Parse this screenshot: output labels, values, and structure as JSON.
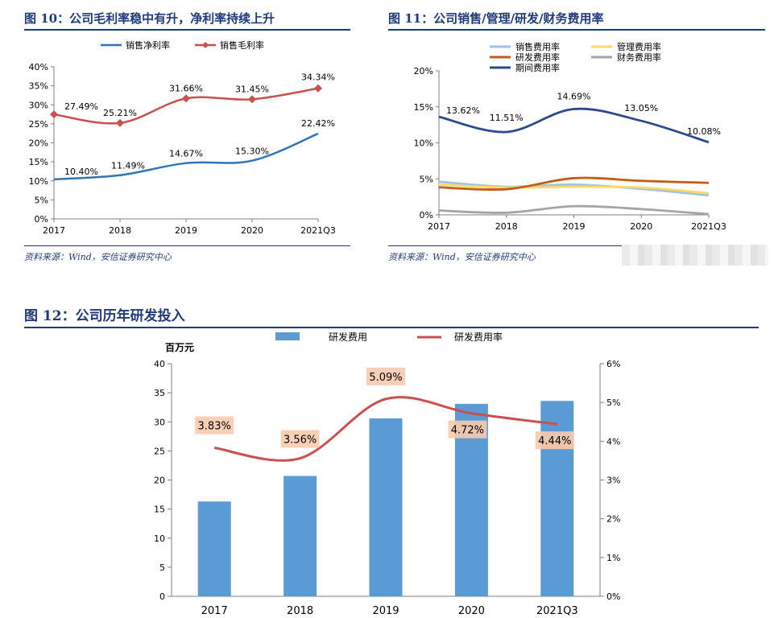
{
  "figures": {
    "fig10": {
      "title": "图 10：公司毛利率稳中有升，净利率持续上升",
      "source": "资料来源：Wind，安信证券研究中心"
    },
    "fig11": {
      "title": "图 11：公司销售/管理/研发/财务费用率",
      "source": "资料来源：Wind，安信证券研究中心"
    },
    "fig12": {
      "title": "图 12：公司历年研发投入"
    }
  },
  "chart_data": [
    {
      "id": "fig10",
      "type": "line",
      "categories": [
        "2017",
        "2018",
        "2019",
        "2020",
        "2021Q3"
      ],
      "y_ticks": [
        "0%",
        "5%",
        "10%",
        "15%",
        "20%",
        "25%",
        "30%",
        "35%",
        "40%"
      ],
      "ylim": [
        0,
        40
      ],
      "legend_placement": "top",
      "series": [
        {
          "name": "销售净利率",
          "color": "#2e75b6",
          "marker": "none",
          "values": [
            10.4,
            11.49,
            14.67,
            15.3,
            22.42
          ],
          "labels": [
            "10.40%",
            "11.49%",
            "14.67%",
            "15.30%",
            "22.42%"
          ]
        },
        {
          "name": "销售毛利率",
          "color": "#c9504e",
          "marker": "diamond",
          "values": [
            27.49,
            25.21,
            31.66,
            31.45,
            34.34
          ],
          "labels": [
            "27.49%",
            "25.21%",
            "31.66%",
            "31.45%",
            "34.34%"
          ]
        }
      ]
    },
    {
      "id": "fig11",
      "type": "line",
      "categories": [
        "2017",
        "2018",
        "2019",
        "2020",
        "2021Q3"
      ],
      "y_ticks": [
        "0%",
        "5%",
        "10%",
        "15%",
        "20%"
      ],
      "ylim": [
        0,
        20
      ],
      "legend_placement": "top",
      "series": [
        {
          "name": "销售费用率",
          "color": "#9dc3e6",
          "values": [
            4.6,
            3.9,
            4.2,
            3.6,
            2.7
          ]
        },
        {
          "name": "管理费用率",
          "color": "#ffd966",
          "values": [
            4.2,
            3.8,
            3.9,
            3.8,
            3.0
          ]
        },
        {
          "name": "研发费用率",
          "color": "#c55a11",
          "values": [
            3.83,
            3.56,
            5.09,
            4.72,
            4.44
          ]
        },
        {
          "name": "财务费用率",
          "color": "#a5a5a5",
          "values": [
            0.6,
            0.3,
            1.2,
            0.8,
            0.1
          ]
        },
        {
          "name": "期间费用率",
          "color": "#2f4a8c",
          "values": [
            13.62,
            11.51,
            14.69,
            13.05,
            10.08
          ],
          "labels": [
            "13.62%",
            "11.51%",
            "14.69%",
            "13.05%",
            "10.08%"
          ]
        }
      ]
    },
    {
      "id": "fig12",
      "type": "bar",
      "categories": [
        "2017",
        "2018",
        "2019",
        "2020",
        "2021Q3"
      ],
      "ylabel": "百万元",
      "y_ticks": [
        "0",
        "5",
        "10",
        "15",
        "20",
        "25",
        "30",
        "35",
        "40"
      ],
      "ylim": [
        0,
        40
      ],
      "y2_ticks": [
        "0%",
        "1%",
        "2%",
        "3%",
        "4%",
        "5%",
        "6%"
      ],
      "y2lim": [
        0,
        6
      ],
      "legend_placement": "top",
      "series": [
        {
          "name": "研发费用",
          "kind": "bar",
          "color": "#5b9bd5",
          "axis": "left",
          "values": [
            16.3,
            20.7,
            30.6,
            33.1,
            33.6
          ]
        },
        {
          "name": "研发费用率",
          "kind": "line",
          "color": "#c9504e",
          "axis": "right",
          "values": [
            3.83,
            3.56,
            5.09,
            4.72,
            4.44
          ],
          "labels": [
            "3.83%",
            "3.56%",
            "5.09%",
            "4.72%",
            "4.44%"
          ]
        }
      ]
    }
  ]
}
